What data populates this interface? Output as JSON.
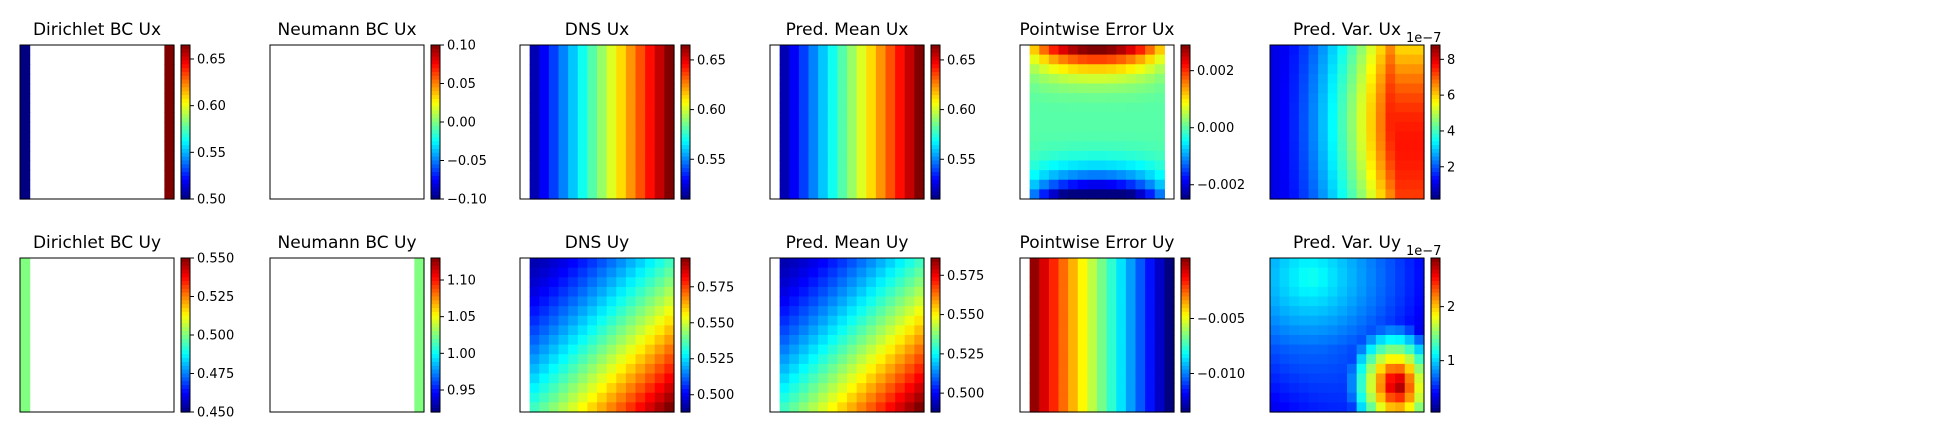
{
  "chart_data": [
    {
      "type": "heatmap",
      "title": "Dirichlet BC Ux",
      "colorbar": {
        "range": [
          0.5,
          0.665
        ],
        "ticks": [
          "0.50",
          "0.55",
          "0.60",
          "0.65"
        ],
        "tick_values": [
          0.5,
          0.55,
          0.6,
          0.65
        ]
      },
      "field": "dirichlet_ux"
    },
    {
      "type": "heatmap",
      "title": "Neumann BC Ux",
      "colorbar": {
        "range": [
          -0.1,
          0.1
        ],
        "ticks": [
          "0.10",
          "0.05",
          "0.00",
          "−0.05",
          "−0.10"
        ],
        "tick_values": [
          0.1,
          0.05,
          0.0,
          -0.05,
          -0.1
        ]
      },
      "field": "blank"
    },
    {
      "type": "heatmap",
      "title": "DNS Ux",
      "colorbar": {
        "range": [
          0.51,
          0.665
        ],
        "ticks": [
          "0.65",
          "0.60",
          "0.55"
        ],
        "tick_values": [
          0.65,
          0.6,
          0.55
        ]
      },
      "field": "ux_linear"
    },
    {
      "type": "heatmap",
      "title": "Pred. Mean Ux",
      "colorbar": {
        "range": [
          0.51,
          0.665
        ],
        "ticks": [
          "0.65",
          "0.60",
          "0.55"
        ],
        "tick_values": [
          0.65,
          0.6,
          0.55
        ]
      },
      "field": "ux_linear"
    },
    {
      "type": "heatmap",
      "title": "Pointwise Error Ux",
      "colorbar": {
        "range": [
          -0.0025,
          0.0029
        ],
        "ticks": [
          "0.002",
          "0.000",
          "−0.002"
        ],
        "tick_values": [
          0.002,
          0.0,
          -0.002
        ]
      },
      "field": "err_ux"
    },
    {
      "type": "heatmap",
      "title": "Pred. Var. Ux",
      "colorbar": {
        "range": [
          0.2,
          8.8
        ],
        "ticks": [
          "8",
          "6",
          "4",
          "2"
        ],
        "tick_values": [
          8,
          6,
          4,
          2
        ],
        "multiplier": "1e−7"
      },
      "field": "var_ux"
    },
    {
      "type": "heatmap",
      "title": "Dirichlet BC Uy",
      "colorbar": {
        "range": [
          0.45,
          0.55
        ],
        "ticks": [
          "0.550",
          "0.525",
          "0.500",
          "0.475",
          "0.450"
        ],
        "tick_values": [
          0.55,
          0.525,
          0.5,
          0.475,
          0.45
        ]
      },
      "field": "dirichlet_uy"
    },
    {
      "type": "heatmap",
      "title": "Neumann BC Uy",
      "colorbar": {
        "range": [
          0.92,
          1.13
        ],
        "ticks": [
          "1.10",
          "1.05",
          "1.00",
          "0.95"
        ],
        "tick_values": [
          1.1,
          1.05,
          1.0,
          0.95
        ]
      },
      "field": "neumann_uy"
    },
    {
      "type": "heatmap",
      "title": "DNS Uy",
      "colorbar": {
        "range": [
          0.488,
          0.595
        ],
        "ticks": [
          "0.575",
          "0.550",
          "0.525",
          "0.500"
        ],
        "tick_values": [
          0.575,
          0.55,
          0.525,
          0.5
        ]
      },
      "field": "uy_diag"
    },
    {
      "type": "heatmap",
      "title": "Pred. Mean Uy",
      "colorbar": {
        "range": [
          0.488,
          0.586
        ],
        "ticks": [
          "0.575",
          "0.550",
          "0.525",
          "0.500"
        ],
        "tick_values": [
          0.575,
          0.55,
          0.525,
          0.5
        ]
      },
      "field": "uy_diag"
    },
    {
      "type": "heatmap",
      "title": "Pointwise Error Uy",
      "colorbar": {
        "range": [
          -0.0135,
          0.0005
        ],
        "ticks": [
          "−0.005",
          "−0.010"
        ],
        "tick_values": [
          -0.005,
          -0.01
        ]
      },
      "field": "err_uy"
    },
    {
      "type": "heatmap",
      "title": "Pred. Var. Uy",
      "colorbar": {
        "range": [
          0.05,
          2.9
        ],
        "ticks": [
          "2",
          "1"
        ],
        "tick_values": [
          2,
          1
        ],
        "multiplier": "1e−7"
      },
      "field": "var_uy"
    }
  ]
}
